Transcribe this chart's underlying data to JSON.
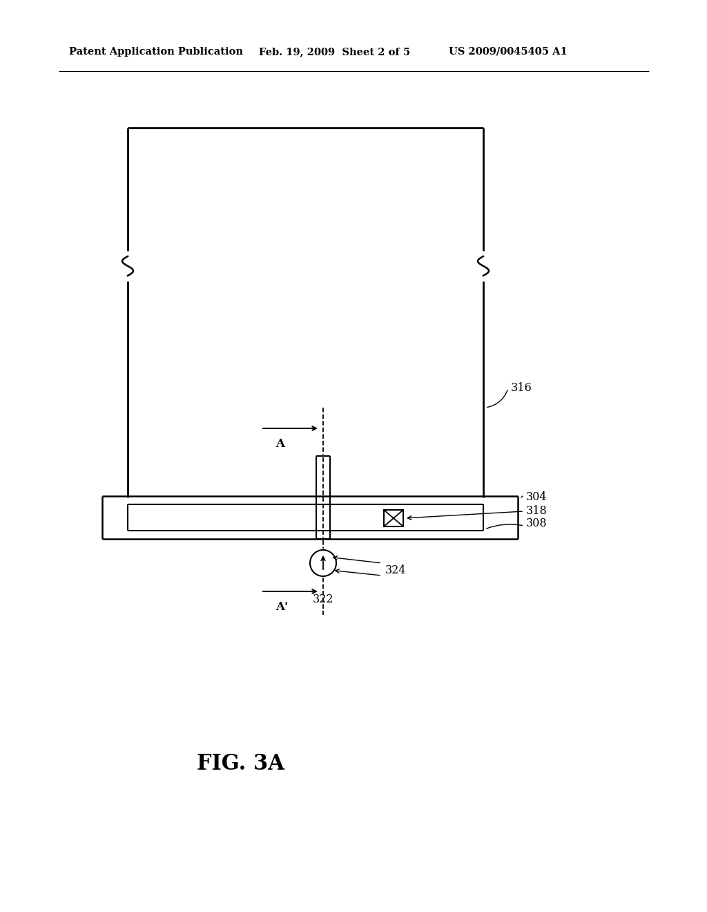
{
  "header_left": "Patent Application Publication",
  "header_mid": "Feb. 19, 2009  Sheet 2 of 5",
  "header_right": "US 2009/0045405 A1",
  "title": "FIG. 3A",
  "bg_color": "#ffffff",
  "lc": "#000000",
  "label_316": "316",
  "label_304": "304",
  "label_318": "318",
  "label_308": "308",
  "label_322": "322",
  "label_324": "324",
  "label_A": "A",
  "label_Aprime": "A'"
}
